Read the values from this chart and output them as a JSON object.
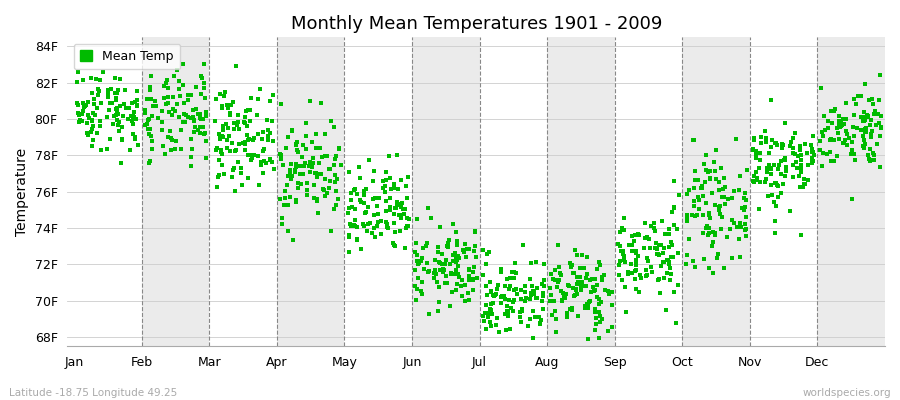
{
  "title": "Monthly Mean Temperatures 1901 - 2009",
  "ylabel": "Temperature",
  "xlabel_labels": [
    "Jan",
    "Feb",
    "Mar",
    "Apr",
    "May",
    "Jun",
    "Jul",
    "Aug",
    "Sep",
    "Oct",
    "Nov",
    "Dec"
  ],
  "ytick_labels": [
    "68F",
    "70F",
    "72F",
    "74F",
    "76F",
    "78F",
    "80F",
    "82F",
    "84F"
  ],
  "ytick_values": [
    68,
    70,
    72,
    74,
    76,
    78,
    80,
    82,
    84
  ],
  "ylim": [
    67.5,
    84.5
  ],
  "dot_color": "#00BB00",
  "background_color": "#ffffff",
  "strip_colors": [
    "#ffffff",
    "#ebebeb"
  ],
  "legend_label": "Mean Temp",
  "footer_left": "Latitude -18.75 Longitude 49.25",
  "footer_right": "worldspecies.org",
  "monthly_means": [
    80.5,
    80.0,
    79.0,
    77.2,
    74.8,
    71.8,
    70.2,
    70.5,
    72.5,
    75.0,
    77.5,
    79.5
  ],
  "monthly_stds": [
    0.7,
    0.8,
    0.8,
    0.9,
    0.8,
    0.7,
    0.7,
    0.7,
    0.8,
    0.9,
    0.8,
    0.7
  ],
  "n_years": 109
}
